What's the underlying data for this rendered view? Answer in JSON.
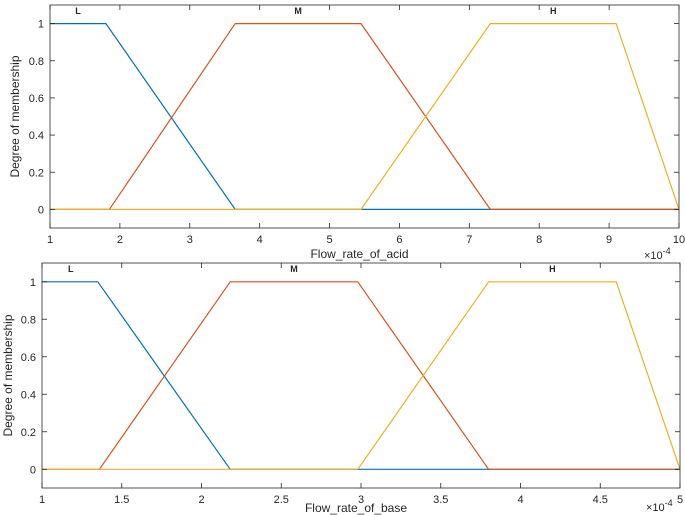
{
  "chart_data": [
    {
      "type": "line",
      "title": "",
      "xlabel": "Flow_rate_of_acid",
      "ylabel": "Degree of membership",
      "x_exponent_label": "×10",
      "x_exponent_power": "-4",
      "xlim": [
        1,
        10
      ],
      "ylim": [
        -0.1,
        1.1
      ],
      "xticks": [
        1,
        2,
        3,
        4,
        5,
        6,
        7,
        8,
        9,
        10
      ],
      "xtick_labels": [
        "1",
        "2",
        "3",
        "4",
        "5",
        "6",
        "7",
        "8",
        "9",
        "10"
      ],
      "yticks": [
        0,
        0.2,
        0.4,
        0.6,
        0.8,
        1
      ],
      "ytick_labels": [
        "0",
        "0.2",
        "0.4",
        "0.6",
        "0.8",
        "1"
      ],
      "grid": false,
      "series": [
        {
          "name": "L",
          "color": "#0072BD",
          "x": [
            1,
            1.8,
            3.65,
            10
          ],
          "y": [
            1,
            1,
            0,
            0
          ],
          "label_x": 1.4
        },
        {
          "name": "M",
          "color": "#D95319",
          "x": [
            1,
            1.85,
            3.65,
            5.45,
            7.3,
            10
          ],
          "y": [
            0,
            0,
            1,
            1,
            0,
            0
          ],
          "label_x": 4.55
        },
        {
          "name": "H",
          "color": "#EDB120",
          "x": [
            1,
            5.45,
            7.3,
            9.1,
            10
          ],
          "y": [
            0,
            0,
            1,
            1,
            0
          ],
          "label_x": 8.2
        }
      ]
    },
    {
      "type": "line",
      "title": "",
      "xlabel": "Flow_rate_of_base",
      "ylabel": "Degree of membership",
      "x_exponent_label": "×10",
      "x_exponent_power": "-4",
      "xlim": [
        1,
        5
      ],
      "ylim": [
        -0.1,
        1.1
      ],
      "xticks": [
        1,
        1.5,
        2,
        2.5,
        3,
        3.5,
        4,
        4.5,
        5
      ],
      "xtick_labels": [
        "1",
        "1.5",
        "2",
        "2.5",
        "3",
        "3.5",
        "4",
        "4.5",
        "5"
      ],
      "yticks": [
        0,
        0.2,
        0.4,
        0.6,
        0.8,
        1
      ],
      "ytick_labels": [
        "0",
        "0.2",
        "0.4",
        "0.6",
        "0.8",
        "1"
      ],
      "grid": false,
      "series": [
        {
          "name": "L",
          "color": "#0072BD",
          "x": [
            1,
            1.35,
            2.18,
            5
          ],
          "y": [
            1,
            1,
            0,
            0
          ],
          "label_x": 1.18
        },
        {
          "name": "M",
          "color": "#D95319",
          "x": [
            1,
            1.36,
            2.18,
            2.98,
            3.8,
            5
          ],
          "y": [
            0,
            0,
            1,
            1,
            0,
            0
          ],
          "label_x": 2.58
        },
        {
          "name": "H",
          "color": "#EDB120",
          "x": [
            1,
            2.98,
            3.8,
            4.6,
            5
          ],
          "y": [
            0,
            0,
            1,
            1,
            0
          ],
          "label_x": 4.2
        }
      ]
    }
  ]
}
